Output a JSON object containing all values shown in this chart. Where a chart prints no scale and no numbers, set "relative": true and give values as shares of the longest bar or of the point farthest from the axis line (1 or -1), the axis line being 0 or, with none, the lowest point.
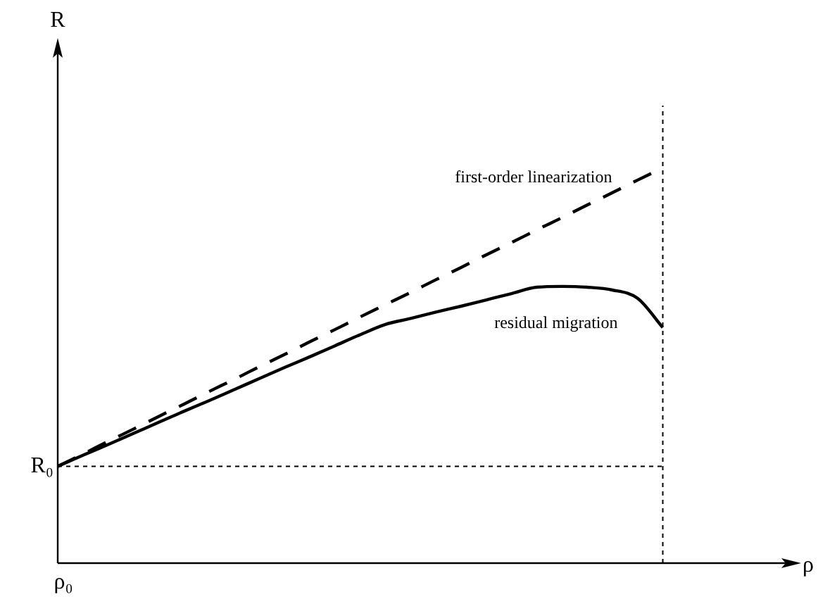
{
  "chart_data": {
    "type": "line",
    "relative": true,
    "annotations": [
      "ρ₀",
      "R",
      "ρ"
    ],
    "legend": false,
    "marker": "none",
    "categories": [
      null,
      null,
      null,
      null,
      null,
      null,
      null,
      null,
      null,
      null,
      null,
      null,
      null,
      null,
      null,
      null,
      null,
      null,
      null,
      null,
      null,
      null,
      null,
      null,
      null
    ],
    "series": [
      {
        "name": "first-order linearization",
        "color": "#000000",
        "line_style": "dashed",
        "values": [
          0.245,
          0.276,
          0.308,
          0.339,
          0.371,
          0.402,
          0.434,
          0.465,
          0.497,
          0.528,
          0.56,
          0.591,
          0.623,
          0.654,
          0.685,
          0.717,
          0.748,
          0.78,
          0.811,
          0.843,
          0.874,
          0.906,
          0.937,
          0.969,
          1
        ]
      },
      {
        "name": "residual migration",
        "color": "#000000",
        "line_style": "solid",
        "values": [
          0.245,
          0.273,
          0.3,
          0.328,
          0.356,
          0.384,
          0.411,
          0.439,
          0.467,
          0.495,
          0.522,
          0.55,
          0.578,
          0.604,
          0.619,
          0.635,
          0.65,
          0.666,
          0.682,
          0.698,
          0.7,
          0.698,
          0.691,
          0.67,
          0.596
        ]
      }
    ],
    "ref_lines": [
      {
        "axis": "y",
        "value": 0.245,
        "label": "R₀",
        "color": "#000000",
        "line_style": "dotted"
      },
      {
        "axis": "x",
        "value": null,
        "color": "#000000",
        "line_style": "dotted"
      }
    ]
  }
}
